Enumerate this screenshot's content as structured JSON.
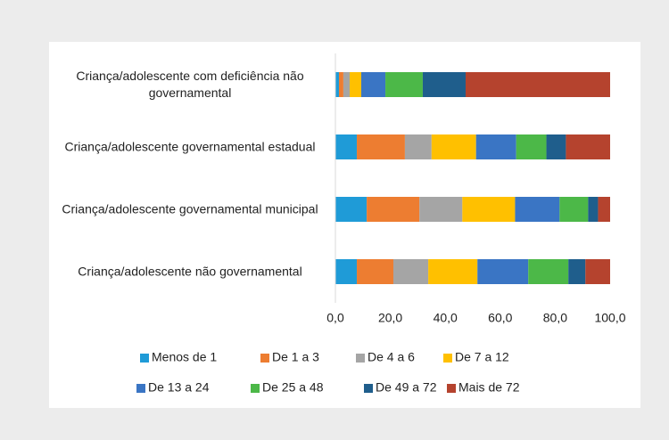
{
  "chart_data": {
    "type": "stacked_barh",
    "categories": [
      "Criança/adolescente com deficiência não governamental",
      "Criança/adolescente governamental estadual",
      "Criança/adolescente governamental municipal",
      "Criança/adolescente não governamental"
    ],
    "series": [
      {
        "name": "Menos de 1",
        "color": "#1f9bd7",
        "values": [
          1.3,
          7.8,
          11.4,
          7.8
        ]
      },
      {
        "name": "De 1 a 3",
        "color": "#ed7d31",
        "values": [
          1.6,
          17.5,
          19.2,
          13.3
        ]
      },
      {
        "name": "De 4 a 6",
        "color": "#a5a5a5",
        "values": [
          2.3,
          9.7,
          15.6,
          12.7
        ]
      },
      {
        "name": "De 7 a 12",
        "color": "#ffc000",
        "values": [
          4.2,
          16.2,
          19.2,
          17.9
        ]
      },
      {
        "name": "De 13 a 24",
        "color": "#3a75c4",
        "values": [
          8.8,
          14.6,
          16.2,
          18.5
        ]
      },
      {
        "name": "De 25 a 48",
        "color": "#4cb848",
        "values": [
          13.6,
          11.0,
          10.4,
          14.6
        ]
      },
      {
        "name": "De 49 a 72",
        "color": "#1f5e8c",
        "values": [
          15.6,
          7.1,
          3.6,
          6.2
        ]
      },
      {
        "name": "Mais de 72",
        "color": "#b5432e",
        "values": [
          52.6,
          16.1,
          4.4,
          9.0
        ]
      }
    ],
    "xlim": [
      0,
      100
    ],
    "xticks": [
      {
        "value": 0,
        "label": "0,0"
      },
      {
        "value": 20,
        "label": "20,0"
      },
      {
        "value": 40,
        "label": "40,0"
      },
      {
        "value": 60,
        "label": "60,0"
      },
      {
        "value": 80,
        "label": "80,0"
      },
      {
        "value": 100,
        "label": "100,0"
      }
    ],
    "grid": false,
    "legend": "bottom"
  }
}
